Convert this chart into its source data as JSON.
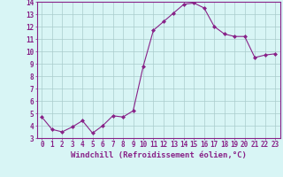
{
  "x": [
    0,
    1,
    2,
    3,
    4,
    5,
    6,
    7,
    8,
    9,
    10,
    11,
    12,
    13,
    14,
    15,
    16,
    17,
    18,
    19,
    20,
    21,
    22,
    23
  ],
  "y": [
    4.7,
    3.7,
    3.5,
    3.9,
    4.4,
    3.4,
    4.0,
    4.8,
    4.7,
    5.2,
    8.8,
    11.7,
    12.4,
    13.1,
    13.8,
    13.9,
    13.5,
    12.0,
    11.4,
    11.2,
    11.2,
    9.5,
    9.7,
    9.8
  ],
  "line_color": "#882288",
  "marker": "D",
  "marker_size": 2,
  "bg_color": "#d8f5f5",
  "grid_color": "#aacccc",
  "axis_label_color": "#882288",
  "tick_color": "#882288",
  "spine_color": "#882288",
  "xlabel": "Windchill (Refroidissement éolien,°C)",
  "ylim": [
    3,
    14
  ],
  "yticks": [
    3,
    4,
    5,
    6,
    7,
    8,
    9,
    10,
    11,
    12,
    13,
    14
  ],
  "xtick_labels": [
    "0",
    "1",
    "2",
    "3",
    "4",
    "5",
    "6",
    "7",
    "8",
    "9",
    "10",
    "11",
    "12",
    "13",
    "14",
    "15",
    "16",
    "17",
    "18",
    "19",
    "20",
    "21",
    "22",
    "23"
  ],
  "xlabel_fontsize": 6.5,
  "tick_fontsize": 5.5
}
